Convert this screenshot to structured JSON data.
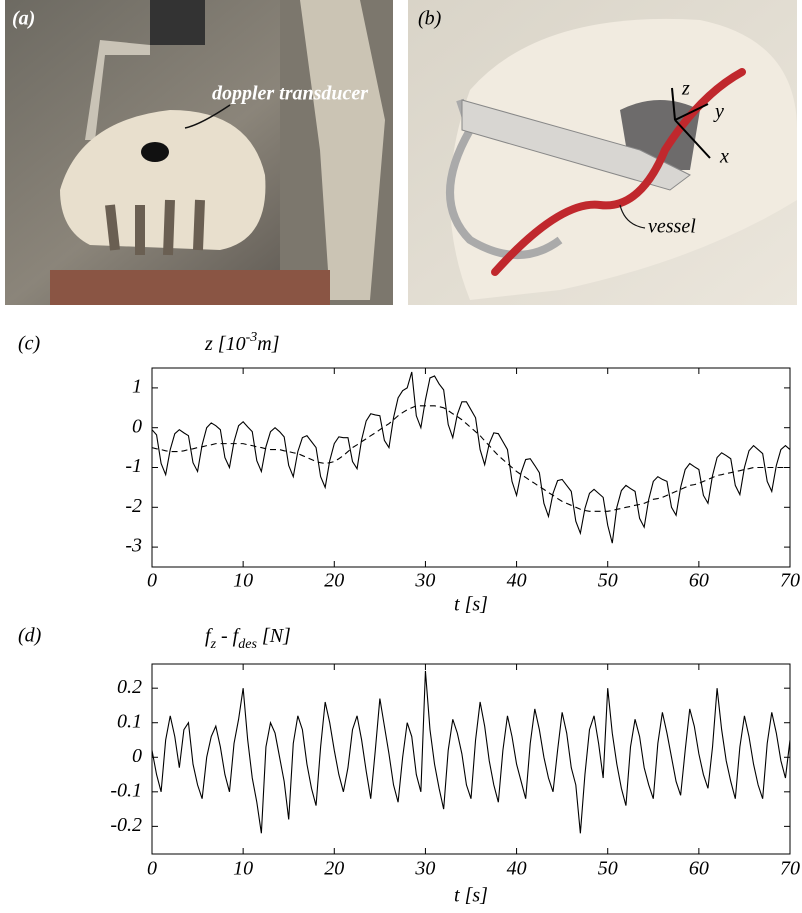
{
  "panels": [
    {
      "label": "(a)",
      "annotation": "doppler transducer"
    },
    {
      "label": "(b)",
      "annotation": "vessel",
      "axes": [
        "z",
        "y",
        "x"
      ]
    }
  ],
  "chart_data": [
    {
      "type": "line",
      "label": "(c)",
      "ylabel_parts": [
        "z [10",
        "-3",
        "m]"
      ],
      "ylabel_shift": "super",
      "xlabel": "t [s]",
      "x": [
        0,
        0.5,
        1,
        1.5,
        2,
        2.5,
        3,
        3.5,
        4,
        4.5,
        5,
        5.5,
        6,
        6.5,
        7,
        7.5,
        8,
        8.5,
        9,
        9.5,
        10,
        10.5,
        11,
        11.5,
        12,
        12.5,
        13,
        13.5,
        14,
        14.5,
        15,
        15.5,
        16,
        16.5,
        17,
        17.5,
        18,
        18.5,
        19,
        19.5,
        20,
        20.5,
        21,
        21.5,
        22,
        22.5,
        23,
        23.5,
        24,
        24.5,
        25,
        25.5,
        26,
        26.5,
        27,
        27.5,
        28,
        28.5,
        29,
        29.5,
        30,
        30.5,
        31,
        31.5,
        32,
        32.5,
        33,
        33.5,
        34,
        34.5,
        35,
        35.5,
        36,
        36.5,
        37,
        37.5,
        38,
        38.5,
        39,
        39.5,
        40,
        40.5,
        41,
        41.5,
        42,
        42.5,
        43,
        43.5,
        44,
        44.5,
        45,
        45.5,
        46,
        46.5,
        47,
        47.5,
        48,
        48.5,
        49,
        49.5,
        50,
        50.5,
        51,
        51.5,
        52,
        52.5,
        53,
        53.5,
        54,
        54.5,
        55,
        55.5,
        56,
        56.5,
        57,
        57.5,
        58,
        58.5,
        59,
        59.5,
        60,
        60.5,
        61,
        61.5,
        62,
        62.5,
        63,
        63.5,
        64,
        64.5,
        65,
        65.5,
        66,
        66.5,
        67,
        67.5,
        68,
        68.5,
        69,
        69.5,
        70
      ],
      "series": [
        {
          "color": "#000000",
          "linestyle": "solid",
          "values": [
            -0.05,
            -0.18,
            -0.9,
            -1.18,
            -0.55,
            -0.15,
            -0.05,
            -0.13,
            -0.2,
            -0.88,
            -1.1,
            -0.43,
            0.0,
            0.12,
            0.05,
            -0.05,
            -0.75,
            -1.0,
            -0.35,
            0.05,
            0.15,
            0.02,
            -0.1,
            -0.83,
            -1.1,
            -0.48,
            -0.1,
            0.0,
            -0.1,
            -0.23,
            -0.95,
            -1.23,
            -0.6,
            -0.25,
            -0.2,
            -0.35,
            -0.5,
            -1.23,
            -1.5,
            -0.83,
            -0.4,
            -0.23,
            -0.25,
            -0.25,
            -0.85,
            -1.03,
            -0.3,
            0.17,
            0.35,
            0.32,
            0.3,
            -0.32,
            -0.5,
            0.25,
            0.75,
            0.93,
            1.0,
            1.4,
            0.3,
            0.0,
            0.7,
            1.25,
            1.3,
            1.1,
            0.95,
            0.08,
            -0.25,
            0.33,
            0.65,
            0.65,
            0.45,
            0.25,
            -0.55,
            -0.93,
            -0.4,
            -0.13,
            -0.15,
            -0.35,
            -0.55,
            -1.35,
            -1.7,
            -1.13,
            -0.8,
            -0.78,
            -0.95,
            -1.13,
            -1.9,
            -2.23,
            -1.65,
            -1.33,
            -1.3,
            -1.45,
            -1.6,
            -2.35,
            -2.65,
            -2.03,
            -1.65,
            -1.55,
            -1.65,
            -1.75,
            -2.45,
            -2.9,
            -2.0,
            -1.58,
            -1.45,
            -1.53,
            -1.6,
            -2.28,
            -2.5,
            -1.8,
            -1.35,
            -1.23,
            -1.3,
            -1.35,
            -2.0,
            -2.2,
            -1.5,
            -1.05,
            -0.9,
            -0.98,
            -1.05,
            -1.7,
            -1.9,
            -1.2,
            -0.75,
            -0.63,
            -0.7,
            -0.78,
            -1.45,
            -1.68,
            -1.0,
            -0.58,
            -0.45,
            -0.55,
            -0.65,
            -1.35,
            -1.6,
            -0.95,
            -0.55,
            -0.45,
            -0.55
          ]
        },
        {
          "color": "#000000",
          "linestyle": "dashed",
          "values": [
            -0.5,
            -0.53,
            -0.55,
            -0.58,
            -0.6,
            -0.6,
            -0.6,
            -0.58,
            -0.55,
            -0.53,
            -0.5,
            -0.48,
            -0.45,
            -0.43,
            -0.4,
            -0.4,
            -0.4,
            -0.4,
            -0.4,
            -0.4,
            -0.4,
            -0.43,
            -0.45,
            -0.48,
            -0.5,
            -0.53,
            -0.55,
            -0.55,
            -0.55,
            -0.58,
            -0.6,
            -0.63,
            -0.65,
            -0.7,
            -0.75,
            -0.8,
            -0.85,
            -0.88,
            -0.9,
            -0.88,
            -0.85,
            -0.78,
            -0.7,
            -0.6,
            -0.5,
            -0.43,
            -0.35,
            -0.28,
            -0.2,
            -0.13,
            -0.05,
            0.03,
            0.1,
            0.2,
            0.3,
            0.38,
            0.45,
            0.5,
            0.55,
            0.55,
            0.55,
            0.55,
            0.55,
            0.53,
            0.5,
            0.43,
            0.35,
            0.28,
            0.2,
            0.1,
            0,
            -0.1,
            -0.2,
            -0.33,
            -0.45,
            -0.58,
            -0.7,
            -0.8,
            -0.9,
            -1.0,
            -1.1,
            -1.18,
            -1.25,
            -1.33,
            -1.4,
            -1.48,
            -1.55,
            -1.63,
            -1.7,
            -1.78,
            -1.85,
            -1.9,
            -1.95,
            -2.0,
            -2.05,
            -2.08,
            -2.1,
            -2.1,
            -2.1,
            -2.1,
            -2.1,
            -2.08,
            -2.05,
            -2.03,
            -2.0,
            -1.98,
            -1.95,
            -1.93,
            -1.9,
            -1.85,
            -1.8,
            -1.78,
            -1.75,
            -1.7,
            -1.65,
            -1.6,
            -1.55,
            -1.5,
            -1.45,
            -1.43,
            -1.4,
            -1.35,
            -1.3,
            -1.25,
            -1.2,
            -1.18,
            -1.15,
            -1.13,
            -1.1,
            -1.08,
            -1.05,
            -1.03,
            -1.0,
            -1.0,
            -1.0,
            -1.0,
            -1.0,
            -1.0,
            -1.0,
            -1.0,
            -1.0
          ]
        }
      ],
      "xlim": [
        0,
        70
      ],
      "xticks": [
        0,
        10,
        20,
        30,
        40,
        50,
        60,
        70
      ],
      "ylim": [
        -3.5,
        1.5
      ],
      "yticks": [
        -3,
        -2,
        -1,
        0,
        1
      ]
    },
    {
      "type": "line",
      "label": "(d)",
      "ylabel_parts": [
        "f",
        "z",
        " - f",
        "des",
        " [N]"
      ],
      "ylabel_shift": "sub",
      "xlabel": "t [s]",
      "x": [
        0,
        0.5,
        1,
        1.5,
        2,
        2.5,
        3,
        3.5,
        4,
        4.5,
        5,
        5.5,
        6,
        6.5,
        7,
        7.5,
        8,
        8.5,
        9,
        9.5,
        10,
        10.5,
        11,
        11.5,
        12,
        12.5,
        13,
        13.5,
        14,
        14.5,
        15,
        15.5,
        16,
        16.5,
        17,
        17.5,
        18,
        18.5,
        19,
        19.5,
        20,
        20.5,
        21,
        21.5,
        22,
        22.5,
        23,
        23.5,
        24,
        24.5,
        25,
        25.5,
        26,
        26.5,
        27,
        27.5,
        28,
        28.5,
        29,
        29.5,
        30,
        30.5,
        31,
        31.5,
        32,
        32.5,
        33,
        33.5,
        34,
        34.5,
        35,
        35.5,
        36,
        36.5,
        37,
        37.5,
        38,
        38.5,
        39,
        39.5,
        40,
        40.5,
        41,
        41.5,
        42,
        42.5,
        43,
        43.5,
        44,
        44.5,
        45,
        45.5,
        46,
        46.5,
        47,
        47.5,
        48,
        48.5,
        49,
        49.5,
        50,
        50.5,
        51,
        51.5,
        52,
        52.5,
        53,
        53.5,
        54,
        54.5,
        55,
        55.5,
        56,
        56.5,
        57,
        57.5,
        58,
        58.5,
        59,
        59.5,
        60,
        60.5,
        61,
        61.5,
        62,
        62.5,
        63,
        63.5,
        64,
        64.5,
        65,
        65.5,
        66,
        66.5,
        67,
        67.5,
        68,
        68.5,
        69,
        69.5,
        70
      ],
      "series": [
        {
          "color": "#000000",
          "linestyle": "solid",
          "values": [
            0.02,
            -0.05,
            -0.1,
            0.05,
            0.12,
            0.06,
            -0.03,
            0.08,
            0.1,
            -0.02,
            -0.08,
            -0.12,
            0.0,
            0.06,
            0.09,
            0.03,
            -0.05,
            -0.1,
            0.04,
            0.11,
            0.2,
            0.05,
            -0.06,
            -0.13,
            -0.22,
            0.03,
            0.1,
            0.07,
            0.0,
            -0.07,
            -0.18,
            0.04,
            0.12,
            0.08,
            -0.02,
            -0.09,
            -0.14,
            0.03,
            0.16,
            0.1,
            0.02,
            -0.05,
            -0.1,
            -0.03,
            0.08,
            0.12,
            0.05,
            -0.04,
            -0.12,
            0.02,
            0.17,
            0.09,
            0.01,
            -0.08,
            -0.13,
            0.0,
            0.1,
            0.06,
            -0.05,
            -0.1,
            0.25,
            0.08,
            -0.02,
            -0.09,
            -0.15,
            0.02,
            0.11,
            0.07,
            0.01,
            -0.08,
            -0.12,
            0.05,
            0.16,
            0.09,
            -0.01,
            -0.08,
            -0.13,
            0.02,
            0.12,
            0.06,
            -0.02,
            -0.07,
            -0.12,
            0.04,
            0.14,
            0.08,
            0.0,
            -0.06,
            -0.1,
            0.02,
            0.13,
            0.07,
            -0.03,
            -0.08,
            -0.22,
            -0.05,
            0.08,
            0.12,
            0.04,
            -0.06,
            0.2,
            0.07,
            -0.02,
            -0.09,
            -0.14,
            0.03,
            0.11,
            0.06,
            -0.03,
            -0.08,
            -0.12,
            0.04,
            0.13,
            0.07,
            0.0,
            -0.07,
            -0.11,
            0.02,
            0.14,
            0.09,
            0.01,
            -0.05,
            -0.09,
            0.03,
            0.2,
            0.08,
            -0.01,
            -0.07,
            -0.12,
            0.03,
            0.12,
            0.06,
            -0.02,
            -0.08,
            -0.12,
            0.04,
            0.13,
            0.07,
            -0.01,
            -0.06,
            0.05
          ]
        }
      ],
      "xlim": [
        0,
        70
      ],
      "xticks": [
        0,
        10,
        20,
        30,
        40,
        50,
        60,
        70
      ],
      "ylim": [
        -0.28,
        0.27
      ],
      "yticks": [
        -0.2,
        -0.1,
        0,
        0.1,
        0.2
      ]
    }
  ]
}
